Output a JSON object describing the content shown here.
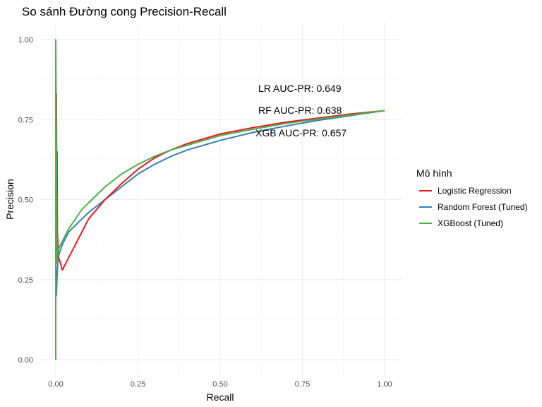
{
  "chart_data": {
    "type": "line",
    "title": "So sánh Đường cong Precision-Recall",
    "xlabel": "Recall",
    "ylabel": "Precision",
    "xlim": [
      0,
      1
    ],
    "ylim": [
      0,
      1
    ],
    "x_ticks": [
      "0.00",
      "0.25",
      "0.50",
      "0.75",
      "1.00"
    ],
    "y_ticks": [
      "0.00",
      "0.25",
      "0.50",
      "0.75",
      "1.00"
    ],
    "grid": true,
    "legend": {
      "title": "Mô hình",
      "position": "right"
    },
    "series": [
      {
        "name": "Logistic Regression",
        "color": "#e41a1c",
        "points": [
          [
            0.0,
            0.62
          ],
          [
            0.002,
            0.83
          ],
          [
            0.003,
            0.45
          ],
          [
            0.004,
            0.65
          ],
          [
            0.005,
            0.4
          ],
          [
            0.008,
            0.32
          ],
          [
            0.015,
            0.3
          ],
          [
            0.02,
            0.28
          ],
          [
            0.03,
            0.3
          ],
          [
            0.05,
            0.34
          ],
          [
            0.08,
            0.4
          ],
          [
            0.1,
            0.44
          ],
          [
            0.15,
            0.5
          ],
          [
            0.2,
            0.55
          ],
          [
            0.25,
            0.595
          ],
          [
            0.3,
            0.63
          ],
          [
            0.35,
            0.655
          ],
          [
            0.4,
            0.675
          ],
          [
            0.5,
            0.705
          ],
          [
            0.6,
            0.725
          ],
          [
            0.7,
            0.742
          ],
          [
            0.8,
            0.755
          ],
          [
            0.9,
            0.768
          ],
          [
            1.0,
            0.778
          ]
        ]
      },
      {
        "name": "Random Forest (Tuned)",
        "color": "#377eb8",
        "points": [
          [
            0.0,
            0.3
          ],
          [
            0.002,
            0.2
          ],
          [
            0.004,
            0.26
          ],
          [
            0.006,
            0.3
          ],
          [
            0.01,
            0.33
          ],
          [
            0.02,
            0.36
          ],
          [
            0.04,
            0.4
          ],
          [
            0.06,
            0.42
          ],
          [
            0.08,
            0.44
          ],
          [
            0.1,
            0.46
          ],
          [
            0.15,
            0.5
          ],
          [
            0.2,
            0.54
          ],
          [
            0.25,
            0.58
          ],
          [
            0.3,
            0.61
          ],
          [
            0.35,
            0.635
          ],
          [
            0.4,
            0.655
          ],
          [
            0.5,
            0.685
          ],
          [
            0.6,
            0.71
          ],
          [
            0.7,
            0.73
          ],
          [
            0.8,
            0.748
          ],
          [
            0.9,
            0.763
          ],
          [
            1.0,
            0.778
          ]
        ]
      },
      {
        "name": "XGBoost (Tuned)",
        "color": "#4daf4a",
        "points": [
          [
            0.0,
            0.0
          ],
          [
            0.0,
            1.0
          ],
          [
            0.002,
            0.65
          ],
          [
            0.004,
            0.3
          ],
          [
            0.006,
            0.33
          ],
          [
            0.01,
            0.35
          ],
          [
            0.02,
            0.37
          ],
          [
            0.04,
            0.41
          ],
          [
            0.06,
            0.44
          ],
          [
            0.08,
            0.47
          ],
          [
            0.1,
            0.49
          ],
          [
            0.15,
            0.54
          ],
          [
            0.2,
            0.58
          ],
          [
            0.25,
            0.61
          ],
          [
            0.3,
            0.635
          ],
          [
            0.35,
            0.655
          ],
          [
            0.4,
            0.67
          ],
          [
            0.5,
            0.7
          ],
          [
            0.6,
            0.72
          ],
          [
            0.7,
            0.738
          ],
          [
            0.8,
            0.752
          ],
          [
            0.9,
            0.765
          ],
          [
            1.0,
            0.778
          ]
        ]
      }
    ],
    "annotations": [
      "LR AUC-PR: 0.649",
      "RF AUC-PR: 0.638",
      "XGB AUC-PR: 0.657"
    ]
  }
}
